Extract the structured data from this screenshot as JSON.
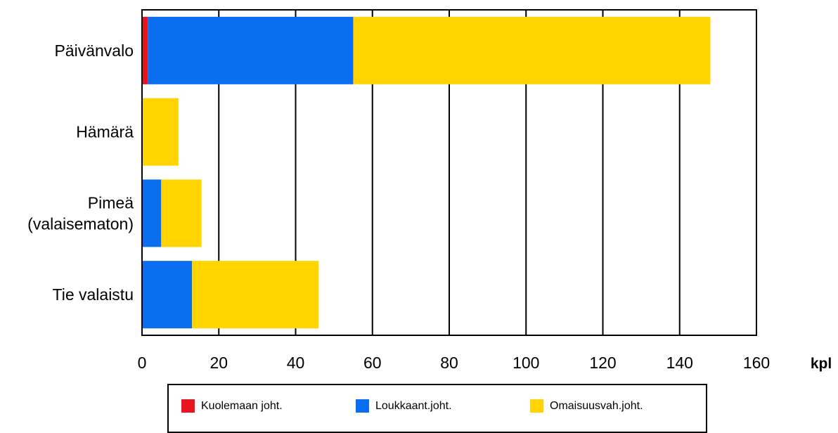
{
  "chart_data": {
    "type": "bar",
    "orientation": "horizontal",
    "stacked": true,
    "categories": [
      [
        "Päivänvalo"
      ],
      [
        "Hämärä"
      ],
      [
        "Pimeä",
        "(valaisematon)"
      ],
      [
        "Tie valaistu"
      ]
    ],
    "series": [
      {
        "name": "Kuolemaan joht.",
        "color": "#e8141e",
        "values": [
          1.5,
          0,
          0,
          0
        ]
      },
      {
        "name": "Loukkaant.joht.",
        "color": "#0a6ef0",
        "values": [
          53.5,
          0,
          5,
          13
        ]
      },
      {
        "name": "Omaisuusvah.joht.",
        "color": "#ffd400",
        "values": [
          93,
          9.5,
          10.5,
          33
        ]
      }
    ],
    "x_ticks": [
      0,
      20,
      40,
      60,
      80,
      100,
      120,
      140,
      160
    ],
    "xlim": [
      0,
      160
    ],
    "xunit": "kpl",
    "grid": "vertical",
    "legend_position": "bottom"
  }
}
